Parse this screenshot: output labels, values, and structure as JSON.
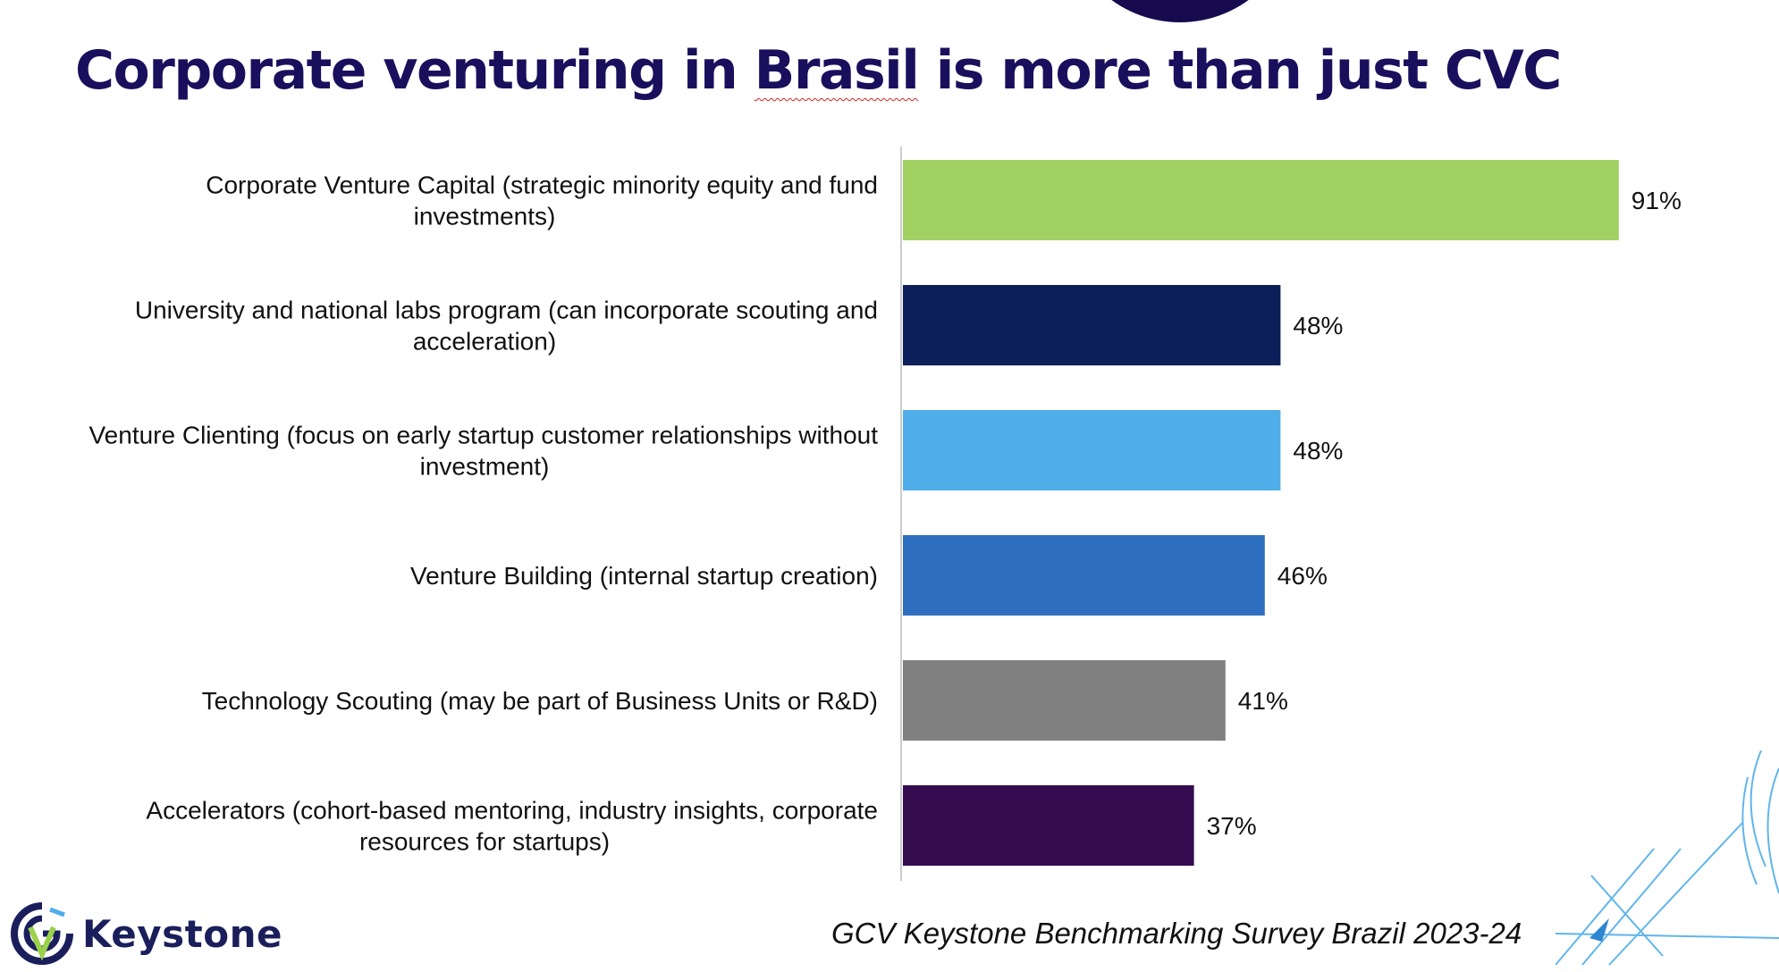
{
  "page": {
    "title_part1": "Corporate venturing in ",
    "title_part2": "Brasil",
    "title_part3": " is more than just CVC"
  },
  "footer": {
    "logo_text": "Keystone",
    "source": "GCV Keystone Benchmarking Survey Brazil 2023-24"
  },
  "chart_data": {
    "type": "bar",
    "orientation": "horizontal",
    "categories": [
      [
        "Corporate Venture Capital (strategic minority equity and fund",
        "investments)"
      ],
      [
        "University and national labs program (can incorporate scouting and",
        "acceleration)"
      ],
      [
        "Venture Clienting (focus on early startup customer relationships without",
        "investment)"
      ],
      [
        "Venture Building (internal startup creation)"
      ],
      [
        "Technology Scouting (may be part of Business Units or R&D)"
      ],
      [
        "Accelerators (cohort-based mentoring, industry insights, corporate",
        "resources for startups)"
      ]
    ],
    "values": [
      91,
      48,
      48,
      46,
      41,
      37
    ],
    "value_labels": [
      "91%",
      "48%",
      "48%",
      "46%",
      "41%",
      "37%"
    ],
    "bar_colors": [
      "#a0d162",
      "#0c1f5a",
      "#4fade9",
      "#2e6fc0",
      "#808080",
      "#350c4f"
    ],
    "xlim": [
      0,
      100
    ],
    "grid": false,
    "legend": "none"
  }
}
